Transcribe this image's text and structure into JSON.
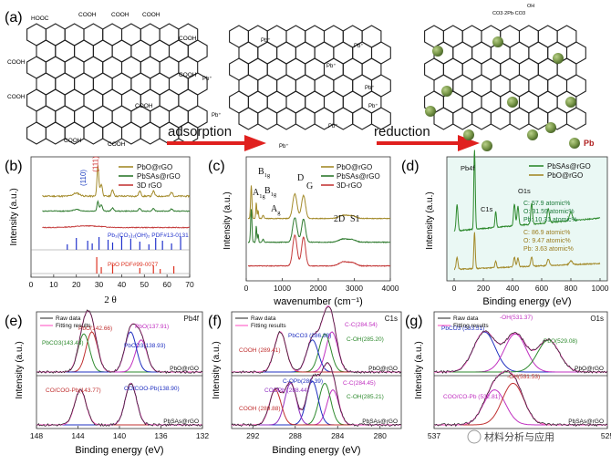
{
  "panel_a": {
    "label": "(a)",
    "arrow1": "adsorption",
    "arrow2": "reduction",
    "pb_label": "Pb",
    "groups": {
      "cooh": "COOH",
      "hooc": "HOOC",
      "pb_plus": "Pb⁺",
      "pb_complex": "CO3·2Pb·CO3",
      "oh": "OH"
    },
    "colors": {
      "arrow": "#e0201e",
      "sphere": "#7c9a4c",
      "sphere_dark": "#4e6b2c"
    }
  },
  "chart_data": [
    {
      "panel": "(b)",
      "type": "line",
      "xlabel": "2 θ",
      "ylabel": "Intensity (a.u.)",
      "xlim": [
        0,
        70
      ],
      "xticks": [
        0,
        10,
        20,
        30,
        40,
        50,
        60,
        70
      ],
      "legend": [
        "PbO@rGO",
        "PbSAs@rGO",
        "3D rGO"
      ],
      "series_colors": [
        "#a38a2a",
        "#2e7a2e",
        "#c43a3a"
      ],
      "peak_labels": [
        {
          "text": "(111)",
          "x": 29.5,
          "color": "#d03030"
        },
        {
          "text": "(110)",
          "x": 31,
          "color": "#2040c0"
        }
      ],
      "references": [
        {
          "name": "Pb₃(CO₃)₂(OH)₂ PDF#13-0131",
          "color": "#2233cc",
          "peaks": [
            16,
            20,
            25,
            27,
            30,
            34,
            36,
            40,
            44,
            48,
            52,
            55,
            58,
            62,
            66
          ]
        },
        {
          "name": "PbO PDF#99-0077",
          "color": "#dd3322",
          "peaks": [
            29,
            31,
            36,
            48,
            54,
            57,
            63
          ]
        }
      ]
    },
    {
      "panel": "(c)",
      "type": "line",
      "xlabel": "wavenumber (cm⁻¹)",
      "ylabel": "Intensity (a.u.)",
      "xlim": [
        0,
        4000
      ],
      "xticks": [
        0,
        1000,
        2000,
        3000,
        4000
      ],
      "legend": [
        "PbO@rGO",
        "PbSAs@rGO",
        "3D-rGO"
      ],
      "series_colors": [
        "#a38a2a",
        "#2e7a2e",
        "#c43a3a"
      ],
      "peak_labels": [
        {
          "text": "A",
          "sub": "1g",
          "x": 140
        },
        {
          "text": "B",
          "sub": "1g",
          "x": 280
        },
        {
          "text": "B",
          "sub": "1g",
          "x": 330
        },
        {
          "text": "A",
          "sub": "g",
          "x": 470
        },
        {
          "text": "D",
          "x": 1350
        },
        {
          "text": "G",
          "x": 1590
        },
        {
          "text": "2D",
          "x": 2700
        },
        {
          "text": "S1",
          "x": 2950
        }
      ]
    },
    {
      "panel": "(d)",
      "type": "line",
      "xlabel": "Binding energy (eV)",
      "ylabel": "Intensity (a.u.)",
      "xlim": [
        0,
        1000
      ],
      "xticks": [
        0,
        200,
        400,
        600,
        800,
        1000
      ],
      "legend": [
        "PbSAs@rGO",
        "PbO@rGO"
      ],
      "series_colors": [
        "#2e8a2e",
        "#a38a2a"
      ],
      "peak_labels": [
        {
          "text": "Pb4f",
          "x": 138
        },
        {
          "text": "C1s",
          "x": 285
        },
        {
          "text": "O1s",
          "x": 531
        }
      ],
      "composition_top": [
        "C: 57.9 atomic%",
        "O: 31.59 atomic%",
        "Pb: 10.31 atomic%"
      ],
      "composition_bottom": [
        "C: 86.9 atomic%",
        "O: 9.47 atomic%",
        "Pb: 3.63 atomic%"
      ]
    },
    {
      "panel": "(e)",
      "type": "line",
      "corner_label": "Pb4f",
      "xlabel": "Binding energy (eV)",
      "ylabel": "Intensity (a.u.)",
      "xlim": [
        148,
        132
      ],
      "xticks": [
        148,
        144,
        140,
        136,
        132
      ],
      "legend": [
        "Raw data",
        "Fitting results"
      ],
      "top_sample": "PbO@rGO",
      "bottom_sample": "PbSAs@rGO",
      "top_peaks": [
        {
          "label": "PbO(142.66)",
          "center": 142.66,
          "color": "#c03030"
        },
        {
          "label": "PbCO3(143.43)",
          "center": 143.43,
          "color": "#2e8a2e"
        },
        {
          "label": "PbO(137.91)",
          "center": 137.91,
          "color": "#c030c0"
        },
        {
          "label": "PbCO3(138.93)",
          "center": 138.93,
          "color": "#2030c0"
        }
      ],
      "bottom_peaks": [
        {
          "label": "CO/COO-Pb(143.77)",
          "center": 143.77,
          "color": "#c03030"
        },
        {
          "label": "CO/COO-Pb(138.90)",
          "center": 138.9,
          "color": "#2030c0"
        }
      ]
    },
    {
      "panel": "(f)",
      "type": "line",
      "corner_label": "C1s",
      "xlabel": "Binding energy (eV)",
      "ylabel": "Intensity (a.u.)",
      "xlim": [
        294,
        278
      ],
      "xticks": [
        292,
        288,
        284,
        280
      ],
      "legend": [
        "Raw data",
        "Fitting results"
      ],
      "top_sample": "PbO@rGO",
      "bottom_sample": "PbSAs@rGO",
      "top_peaks": [
        {
          "label": "C-C(284.54)",
          "center": 284.54,
          "color": "#c030c0"
        },
        {
          "label": "C-OH(285.20)",
          "center": 285.2,
          "color": "#2e8a2e"
        },
        {
          "label": "PbCO3 (286.38)",
          "center": 286.38,
          "color": "#2030c0"
        },
        {
          "label": "COOH (289.41)",
          "center": 289.41,
          "color": "#c03030"
        }
      ],
      "bottom_peaks": [
        {
          "label": "C-C(284.45)",
          "center": 284.45,
          "color": "#c030c0"
        },
        {
          "label": "C-OH(285.21)",
          "center": 285.21,
          "color": "#2e8a2e"
        },
        {
          "label": "C-OPb(286.39)",
          "center": 286.39,
          "color": "#2030c0"
        },
        {
          "label": "COOPb (288.44)",
          "center": 288.44,
          "color": "#9030c0"
        },
        {
          "label": "COOH (289.88)",
          "center": 289.88,
          "color": "#c03030"
        }
      ]
    },
    {
      "panel": "(g)",
      "type": "line",
      "corner_label": "O1s",
      "xlabel": "Binding energy (eV)",
      "ylabel": "Intensity (a.u.)",
      "xlim": [
        537,
        525
      ],
      "xticks": [
        537,
        525
      ],
      "legend": [
        "Raw data",
        "Fitting results"
      ],
      "top_sample": "PbO@rGO",
      "bottom_sample": "PbSAs@rGO",
      "top_peaks": [
        {
          "label": "PbCO3 (533.51)",
          "center": 533.51,
          "color": "#2030c0"
        },
        {
          "label": "-OH(531.37)",
          "center": 531.37,
          "color": "#c030c0"
        },
        {
          "label": "PbO(529.08)",
          "center": 529.08,
          "color": "#2e8a2e"
        }
      ],
      "bottom_peaks": [
        {
          "label": "COO/CO-Pb (532.81)",
          "center": 532.81,
          "color": "#c030c0"
        },
        {
          "label": "-OH(531.53)",
          "center": 531.53,
          "color": "#c03030"
        }
      ]
    }
  ],
  "watermark": "材料分析与应用"
}
